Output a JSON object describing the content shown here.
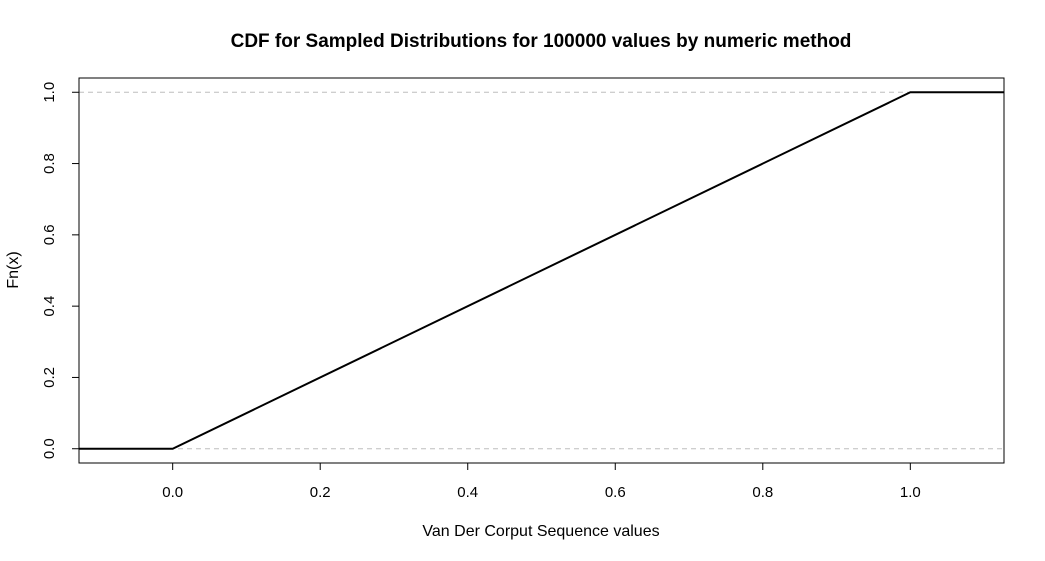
{
  "chart_data": {
    "type": "line",
    "title": "CDF for Sampled Distributions for 100000 values by numeric method",
    "xlabel": "Van Der Corput Sequence values",
    "ylabel": "Fn(x)",
    "xlim": [
      -0.127,
      1.127
    ],
    "ylim": [
      -0.04,
      1.04
    ],
    "x_ticks": [
      0.0,
      0.2,
      0.4,
      0.6,
      0.8,
      1.0
    ],
    "x_tick_labels": [
      "0.0",
      "0.2",
      "0.4",
      "0.6",
      "0.8",
      "1.0"
    ],
    "y_ticks": [
      0.0,
      0.2,
      0.4,
      0.6,
      0.8,
      1.0
    ],
    "y_tick_labels": [
      "0.0",
      "0.2",
      "0.4",
      "0.6",
      "0.8",
      "1.0"
    ],
    "reference_lines_y": [
      0.0,
      1.0
    ],
    "reference_line_color": "#bdbdbd",
    "line_color": "#000000",
    "grid": false,
    "legend": "none",
    "series": [
      {
        "x": [
          -0.127,
          0.0,
          1.0,
          1.127
        ],
        "y": [
          0.0,
          0.0,
          1.0,
          1.0
        ]
      }
    ]
  }
}
